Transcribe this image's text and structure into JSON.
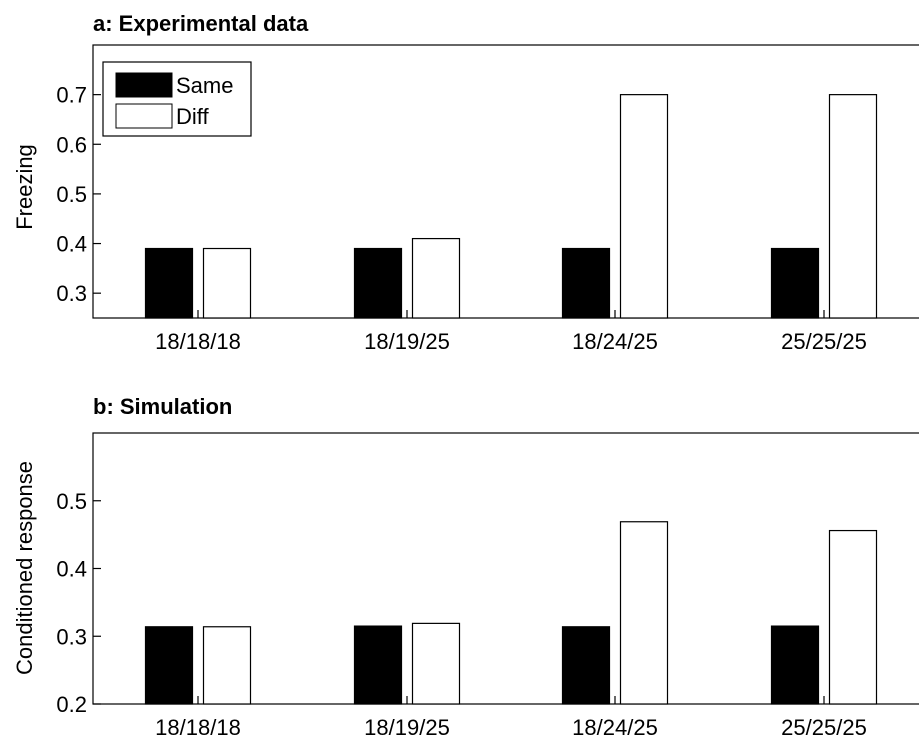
{
  "chart_data": [
    {
      "type": "bar",
      "title": "a: Experimental data",
      "ylabel": "Freezing",
      "xlabel": "",
      "ylim": [
        0.25,
        0.8
      ],
      "yticks": [
        0.3,
        0.4,
        0.5,
        0.6,
        0.7
      ],
      "ytick_labels": [
        "0.3",
        "0.4",
        "0.5",
        "0.6",
        "0.7"
      ],
      "categories": [
        "18/18/18",
        "18/19/25",
        "18/24/25",
        "25/25/25"
      ],
      "series": [
        {
          "name": "Same",
          "color": "#000000",
          "values": [
            0.39,
            0.39,
            0.39,
            0.39
          ]
        },
        {
          "name": "Diff",
          "color": "#ffffff",
          "values": [
            0.39,
            0.41,
            0.7,
            0.7
          ]
        }
      ],
      "legend": "top-left",
      "grid": false
    },
    {
      "type": "bar",
      "title": "b: Simulation",
      "ylabel": "Conditioned response",
      "xlabel": "",
      "ylim": [
        0.2,
        0.6
      ],
      "yticks": [
        0.2,
        0.3,
        0.4,
        0.5
      ],
      "ytick_labels": [
        "0.2",
        "0.3",
        "0.4",
        "0.5"
      ],
      "categories": [
        "18/18/18",
        "18/19/25",
        "18/24/25",
        "25/25/25"
      ],
      "series": [
        {
          "name": "Same",
          "color": "#000000",
          "values": [
            0.314,
            0.315,
            0.314,
            0.315
          ]
        },
        {
          "name": "Diff",
          "color": "#ffffff",
          "values": [
            0.314,
            0.319,
            0.469,
            0.456
          ]
        }
      ],
      "legend": "none",
      "grid": false
    }
  ]
}
